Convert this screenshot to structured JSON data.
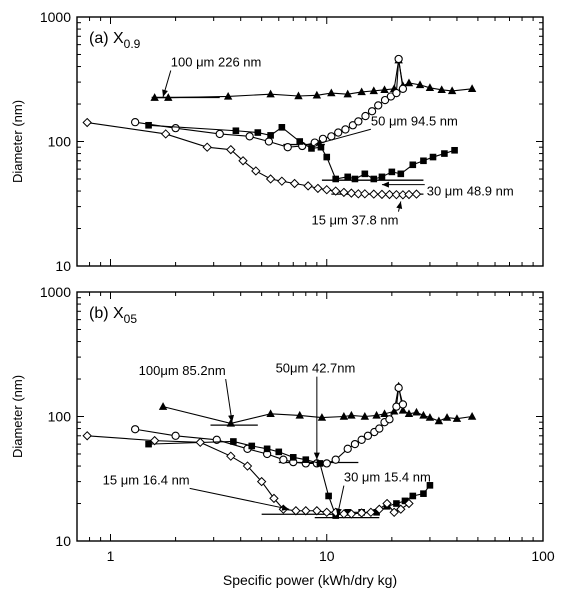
{
  "chart_data": [
    {
      "type": "line",
      "panel_label": "(a) X",
      "panel_label_sub": "0.9",
      "xscale": "log",
      "yscale": "log",
      "xlim": [
        0.7,
        100
      ],
      "ylim": [
        10,
        1000
      ],
      "xlabel": "",
      "ylabel": "Diameter (nm)",
      "x_ticks": [],
      "y_ticks": [
        "10",
        "100",
        "1000"
      ],
      "series": [
        {
          "marker": "triangle",
          "x": [
            1.6,
            1.85,
            3.5,
            5.5,
            7.4,
            9.0,
            10.5,
            12.5,
            14.5,
            16.5,
            18.5,
            20.5,
            21.5,
            22.5,
            24,
            27,
            30,
            34,
            38,
            47
          ],
          "y": [
            225,
            225,
            230,
            240,
            232,
            235,
            245,
            240,
            250,
            255,
            260,
            265,
            450,
            280,
            295,
            285,
            270,
            260,
            255,
            265
          ]
        },
        {
          "marker": "circle",
          "x": [
            1.3,
            2.0,
            3.2,
            4.4,
            5.4,
            6.6,
            7.7,
            8.8,
            9.6,
            10.5,
            11.3,
            12.2,
            13.2,
            14.0,
            15.1,
            16.2,
            17.3,
            18.6,
            19.8,
            21.0,
            21.5,
            22.5
          ],
          "y": [
            143,
            128,
            115,
            110,
            100,
            90,
            92,
            98,
            105,
            110,
            118,
            125,
            135,
            145,
            160,
            175,
            195,
            215,
            230,
            245,
            460,
            265
          ]
        },
        {
          "marker": "square",
          "x": [
            1.5,
            3.8,
            4.8,
            5.5,
            6.2,
            7.5,
            8.5,
            9.4,
            10.0,
            11.0,
            12.5,
            13.5,
            15,
            16.5,
            18,
            20,
            22,
            25,
            28,
            31,
            35,
            39
          ],
          "y": [
            135,
            122,
            118,
            112,
            130,
            100,
            88,
            90,
            75,
            50,
            52,
            50,
            55,
            50,
            52,
            57,
            55,
            65,
            70,
            75,
            80,
            85
          ]
        },
        {
          "marker": "diamond",
          "x": [
            0.78,
            1.8,
            2.8,
            3.6,
            4.1,
            4.7,
            5.5,
            6.2,
            7.1,
            8.2,
            9.1,
            10.0,
            11,
            12,
            13,
            14,
            15,
            16.5,
            18,
            19.5,
            21,
            22.5,
            24,
            26
          ],
          "y": [
            142,
            115,
            90,
            86,
            70,
            58,
            50,
            48,
            46,
            44,
            42,
            41,
            40,
            39,
            38.5,
            38,
            38,
            37.8,
            37.6,
            37.5,
            37.4,
            37.3,
            37.5,
            37.8
          ]
        }
      ],
      "reference_lines": [
        {
          "x": [
            1.55,
            3.2
          ],
          "y": [
            226,
            226
          ]
        },
        {
          "x": [
            6.3,
            9.8
          ],
          "y": [
            94.5,
            94.5
          ]
        },
        {
          "x": [
            9.5,
            28
          ],
          "y": [
            48.9,
            48.9
          ]
        },
        {
          "x": [
            10.5,
            28
          ],
          "y": [
            37.8,
            37.8
          ]
        }
      ],
      "annotations": [
        {
          "text": "100 μm 226 nm",
          "tx": 1.9,
          "ty": 400,
          "arrow_to": [
            1.75,
            228
          ]
        },
        {
          "text": "50 μm 94.5 nm",
          "tx": 16,
          "ty": 135,
          "arrow_to": [
            8.8,
            94.5
          ]
        },
        {
          "text": "30 μm 48.9 nm",
          "tx": 29,
          "ty": 37,
          "arrow_to": [
            18,
            45
          ]
        },
        {
          "text": "15 μm 37.8 nm",
          "tx": 8.5,
          "ty": 21.5,
          "arrow_to": [
            22,
            33
          ]
        }
      ]
    },
    {
      "type": "line",
      "panel_label": "(b) X",
      "panel_label_sub": "05",
      "xscale": "log",
      "yscale": "log",
      "xlim": [
        0.7,
        100
      ],
      "ylim": [
        10,
        1000
      ],
      "xlabel": "Specific power (kWh/dry kg)",
      "ylabel": "Diameter (nm)",
      "x_ticks": [
        "1",
        "10",
        "100"
      ],
      "y_ticks": [
        "10",
        "100",
        "1000"
      ],
      "series": [
        {
          "marker": "triangle",
          "x": [
            1.75,
            3.6,
            5.5,
            7.5,
            9.5,
            12.0,
            13.0,
            15.0,
            17.0,
            18.5,
            20.5,
            21.5,
            22.5,
            24,
            26,
            28,
            30,
            33,
            36,
            40,
            47
          ],
          "y": [
            120,
            88,
            105,
            102,
            98,
            100,
            102,
            100,
            102,
            105,
            110,
            175,
            112,
            105,
            108,
            102,
            98,
            92,
            98,
            96,
            100
          ]
        },
        {
          "marker": "circle",
          "x": [
            1.3,
            2.0,
            3.1,
            4.3,
            5.3,
            6.3,
            7.0,
            8.0,
            9.0,
            10.0,
            11.0,
            12.5,
            13.5,
            14.5,
            15.5,
            16.6,
            17.5,
            18.5,
            19.5,
            21.0,
            21.5,
            22.5
          ],
          "y": [
            79,
            70,
            65,
            55,
            50,
            45,
            43,
            42,
            42,
            42,
            45,
            55,
            60,
            65,
            70,
            75,
            80,
            90,
            95,
            120,
            170,
            125
          ]
        },
        {
          "marker": "square",
          "x": [
            1.5,
            3.7,
            4.5,
            5.3,
            6.0,
            7.0,
            8.0,
            9.3,
            10.2,
            11.0,
            12.5,
            14.5,
            17,
            19,
            21,
            23,
            25,
            28,
            30
          ],
          "y": [
            60,
            63,
            58,
            55,
            52,
            47,
            45,
            42,
            23,
            16,
            17,
            17,
            17,
            19,
            20,
            21,
            23,
            24,
            28
          ]
        },
        {
          "marker": "diamond",
          "x": [
            0.78,
            1.6,
            2.6,
            3.6,
            4.3,
            5.0,
            5.7,
            6.3,
            7.2,
            8.0,
            9.0,
            10.0,
            11.0,
            12.0,
            13.0,
            14.5,
            16.0,
            17.5,
            19.0,
            20.5,
            22.0,
            24.0
          ],
          "y": [
            70,
            64,
            62,
            48,
            40,
            30,
            22,
            18,
            17.5,
            17.5,
            17.5,
            17,
            17,
            16.5,
            16.5,
            16.8,
            17,
            18,
            20,
            17,
            18,
            20
          ]
        }
      ],
      "reference_lines": [
        {
          "x": [
            2.9,
            4.8
          ],
          "y": [
            85.2,
            85.2
          ]
        },
        {
          "x": [
            6.0,
            14.0
          ],
          "y": [
            42.7,
            42.7
          ]
        },
        {
          "x": [
            5.0,
            13.0
          ],
          "y": [
            16.4,
            16.4
          ]
        },
        {
          "x": [
            8.8,
            17.5
          ],
          "y": [
            15.4,
            15.4
          ]
        }
      ],
      "annotations": [
        {
          "text": "100μm 85.2nm",
          "tx": 1.35,
          "ty": 215,
          "arrow_to": [
            3.65,
            90
          ]
        },
        {
          "text": "50μm 42.7nm",
          "tx": 5.8,
          "ty": 225,
          "arrow_to": [
            9.0,
            45
          ]
        },
        {
          "text": "15 μm 16.4 nm",
          "tx": 0.92,
          "ty": 28.5,
          "arrow_to": [
            6.7,
            18
          ]
        },
        {
          "text": "30 μm 15.4 nm",
          "tx": 12,
          "ty": 30,
          "arrow_to": [
            11.2,
            16
          ]
        }
      ]
    }
  ]
}
